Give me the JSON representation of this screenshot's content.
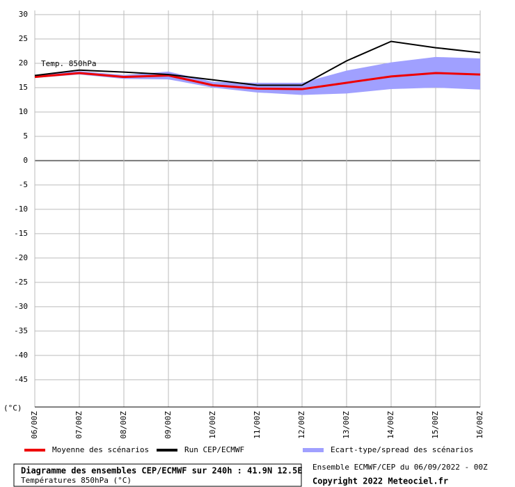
{
  "chart_data": {
    "type": "line",
    "title": "Diagramme des ensembles CEP/ECMWF sur 240h : 41.9N 12.5E",
    "subtitle": "Températures 850hPa (°C)",
    "annotation": "Temp. 850hPa",
    "y_label": "(°C)",
    "source": "Ensemble ECMWF/CEP du 06/09/2022 - 00Z",
    "copyright": "Copyright 2022 Meteociel.fr",
    "categories": [
      "06/00Z",
      "07/00Z",
      "08/00Z",
      "09/00Z",
      "10/00Z",
      "11/00Z",
      "12/00Z",
      "13/00Z",
      "14/00Z",
      "15/00Z",
      "16/00Z"
    ],
    "band": {
      "name": "Ecart-type/spread des scénarios",
      "color": "#a0a0ff",
      "lower": [
        17.0,
        17.7,
        16.8,
        16.7,
        15.0,
        14.0,
        13.5,
        13.8,
        14.7,
        15.0,
        14.6
      ],
      "upper": [
        17.6,
        18.4,
        17.6,
        18.3,
        16.2,
        16.0,
        16.0,
        18.5,
        20.2,
        21.3,
        21.0
      ]
    },
    "series": [
      {
        "name": "Moyenne des scénarios",
        "color": "#ee0000",
        "values": [
          17.2,
          18.0,
          17.2,
          17.5,
          15.5,
          14.8,
          14.7,
          16.0,
          17.3,
          18.0,
          17.7
        ]
      },
      {
        "name": "Run CEP/ECMWF",
        "color": "#000000",
        "values": [
          17.5,
          18.6,
          18.2,
          17.7,
          16.6,
          15.5,
          15.5,
          20.5,
          24.5,
          23.2,
          22.2
        ]
      }
    ],
    "ylim": [
      -50.6,
      30
    ],
    "yticks": [
      -45,
      -40,
      -35,
      -30,
      -25,
      -20,
      -15,
      -10,
      -5,
      0,
      5,
      10,
      15,
      20,
      25,
      30
    ],
    "grid": true
  }
}
